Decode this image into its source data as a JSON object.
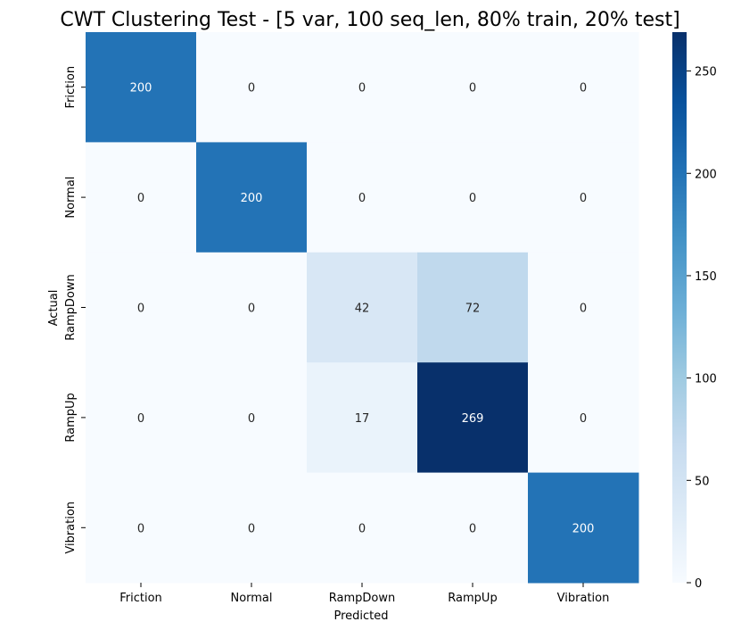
{
  "chart_data": {
    "type": "heatmap",
    "title": "CWT Clustering Test - [5 var, 100 seq_len, 80% train, 20% test]",
    "xlabel": "Predicted",
    "ylabel": "Actual",
    "x_categories": [
      "Friction",
      "Normal",
      "RampDown",
      "RampUp",
      "Vibration"
    ],
    "y_categories": [
      "Friction",
      "Normal",
      "RampDown",
      "RampUp",
      "Vibration"
    ],
    "values": [
      [
        200,
        0,
        0,
        0,
        0
      ],
      [
        0,
        200,
        0,
        0,
        0
      ],
      [
        0,
        0,
        42,
        72,
        0
      ],
      [
        0,
        0,
        17,
        269,
        0
      ],
      [
        0,
        0,
        0,
        0,
        200
      ]
    ],
    "colorbar": {
      "colormap": "Blues",
      "vmin": 0,
      "vmax": 269,
      "ticks": [
        0,
        50,
        100,
        150,
        200,
        250
      ]
    },
    "grid": false
  }
}
